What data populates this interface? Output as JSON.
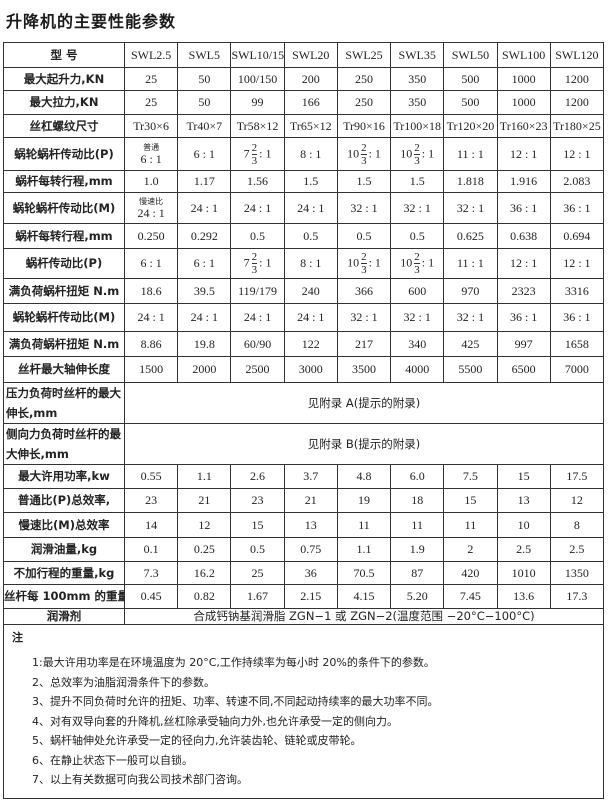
{
  "title": "升降机的主要性能参数",
  "table": {
    "header": {
      "label": "型 号",
      "models": [
        "SWL2.5",
        "SWL5",
        "SWL10/15",
        "SWL20",
        "SWL25",
        "SWL35",
        "SWL50",
        "SWL100",
        "SWL120"
      ]
    },
    "rows": [
      {
        "label": "最大起升力,KN",
        "values": [
          "25",
          "50",
          "100/150",
          "200",
          "250",
          "350",
          "500",
          "1000",
          "1200"
        ]
      },
      {
        "label": "最大拉力,KN",
        "values": [
          "25",
          "50",
          "99",
          "166",
          "250",
          "350",
          "500",
          "1000",
          "1200"
        ]
      },
      {
        "label": "丝杠螺纹尺寸",
        "values": [
          "Tr30×6",
          "Tr40×7",
          "Tr58×12",
          "Tr65×12",
          "Tr90×16",
          "Tr100×18",
          "Tr120×20",
          "Tr160×23",
          "Tr180×25"
        ]
      },
      {
        "label": "蜗轮蜗杆传动比(P)",
        "values": [
          {
            "note": "普通",
            "text": "6 : 1"
          },
          "6 : 1",
          {
            "whole": "7",
            "num": "2",
            "den": "3",
            "rest": ": 1"
          },
          "8 : 1",
          {
            "whole": "10",
            "num": "2",
            "den": "3",
            "rest": ": 1"
          },
          {
            "whole": "10",
            "num": "2",
            "den": "3",
            "rest": ": 1"
          },
          "11 : 1",
          "12 : 1",
          "12 : 1"
        ]
      },
      {
        "label": "蜗杆每转行程,mm",
        "values": [
          "1.0",
          "1.17",
          "1.56",
          "1.5",
          "1.5",
          "1.5",
          "1.818",
          "1.916",
          "2.083"
        ]
      },
      {
        "label": "蜗轮蜗杆传动比(M)",
        "values": [
          {
            "note": "慢速比",
            "text": "24 : 1"
          },
          "24 : 1",
          "24 : 1",
          "24 : 1",
          "32 : 1",
          "32 : 1",
          "32 : 1",
          "36 : 1",
          "36 : 1"
        ]
      },
      {
        "label": "蜗杆每转行程,mm",
        "values": [
          "0.250",
          "0.292",
          "0.5",
          "0.5",
          "0.5",
          "0.5",
          "0.625",
          "0.638",
          "0.694"
        ]
      },
      {
        "label": "蜗杆传动比(P)",
        "values": [
          "6 : 1",
          "6 : 1",
          {
            "whole": "7",
            "num": "2",
            "den": "3",
            "rest": ": 1"
          },
          "8 : 1",
          {
            "whole": "10",
            "num": "2",
            "den": "3",
            "rest": ": 1"
          },
          {
            "whole": "10",
            "num": "2",
            "den": "3",
            "rest": ": 1"
          },
          "11 : 1",
          "12 : 1",
          "12 : 1"
        ]
      },
      {
        "label": "满负荷蜗杆扭矩 N.m",
        "values": [
          "18.6",
          "39.5",
          "119/179",
          "240",
          "366",
          "600",
          "970",
          "2323",
          "3316"
        ]
      },
      {
        "label": "蜗轮蜗杆传动比(M)",
        "values": [
          "24 : 1",
          "24 : 1",
          "24 : 1",
          "24 : 1",
          "32 : 1",
          "32 : 1",
          "32 : 1",
          "36 : 1",
          "36 : 1"
        ]
      },
      {
        "label": "满负荷蜗杆扭矩 N.m",
        "values": [
          "8.86",
          "19.8",
          "60/90",
          "122",
          "217",
          "340",
          "425",
          "997",
          "1658"
        ]
      },
      {
        "label": "丝杆最大轴伸长度",
        "values": [
          "1500",
          "2000",
          "2500",
          "3000",
          "3500",
          "4000",
          "5500",
          "6500",
          "7000"
        ]
      },
      {
        "label": "压力负荷时丝杆的最大伸长,mm",
        "span": "见附录 A(提示的附录)"
      },
      {
        "label": "侧向力负荷时丝杆的最大伸长,mm",
        "span": "见附录 B(提示的附录)"
      },
      {
        "label": "最大许用功率,kw",
        "values": [
          "0.55",
          "1.1",
          "2.6",
          "3.7",
          "4.8",
          "6.0",
          "7.5",
          "15",
          "17.5"
        ]
      },
      {
        "label": "普通比(P)总效率,",
        "values": [
          "23",
          "21",
          "23",
          "21",
          "19",
          "18",
          "15",
          "13",
          "12"
        ]
      },
      {
        "label": "慢速比(M)总效率",
        "values": [
          "14",
          "12",
          "15",
          "13",
          "11",
          "11",
          "11",
          "10",
          "8"
        ]
      },
      {
        "label": "润滑油量,kg",
        "values": [
          "0.1",
          "0.25",
          "0.5",
          "0.75",
          "1.1",
          "1.9",
          "2",
          "2.5",
          "2.5"
        ]
      },
      {
        "label": "不加行程的重量,kg",
        "values": [
          "7.3",
          "16.2",
          "25",
          "36",
          "70.5",
          "87",
          "420",
          "1010",
          "1350"
        ]
      },
      {
        "label": "丝杆每 100mm 的重量",
        "values": [
          "0.45",
          "0.82",
          "1.67",
          "2.15",
          "4.15",
          "5.20",
          "7.45",
          "13.6",
          "17.3"
        ]
      },
      {
        "label": "润滑剂",
        "span": "合成钙钠基润滑脂 ZGN−1 或 ZGN−2(温度范围 −20°C−100°C)"
      }
    ]
  },
  "notes": {
    "heading": "注",
    "items": [
      "1:最大许用功率是在环境温度为 20°C,工作持续率为每小时 20%的条件下的参数。",
      "2、总效率为油脂润滑条件下的参数。",
      "3、提升不同负荷时允许的扭矩、功率、转速不同,不同起动持续率的最大功率不同。",
      "4、对有双导向套的升降机,丝杠除承受轴向力外,也允许承受一定的侧向力。",
      "5、蜗杆轴伸处允许承受一定的径向力,允许装齿轮、链轮或皮带轮。",
      "6、在静止状态下一般可以自锁。",
      "7、以上有关数据可向我公司技术部门咨询。"
    ]
  }
}
